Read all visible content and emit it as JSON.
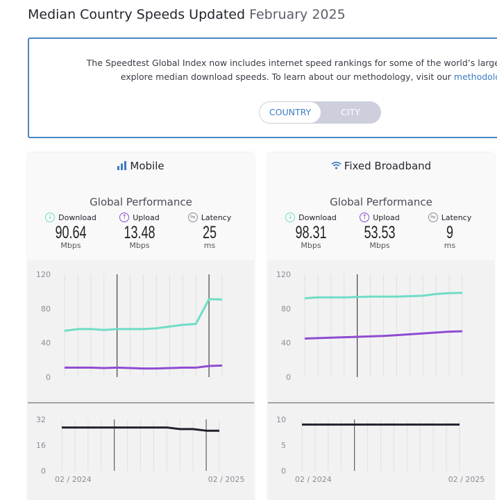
{
  "header": {
    "title": "Median Country Speeds Updated",
    "date": "February 2025"
  },
  "info": {
    "line1": "The Speedtest Global Index now includes internet speed rankings for some of the world’s largest cities. U",
    "line2": "explore median download speeds. To learn about our methodology, visit our ",
    "link": "methodology"
  },
  "toggle": {
    "options": [
      "COUNTRY",
      "CITY"
    ],
    "selected": "COUNTRY"
  },
  "colors": {
    "download": "#6fdcc6",
    "upload": "#8f4bd0",
    "latency": "#20202e",
    "link": "#3d7cc0"
  },
  "cards": [
    {
      "title": "Mobile",
      "icon": "signal-bars-icon",
      "subtitle": "Global Performance",
      "metrics": [
        {
          "label": "Download",
          "value": "90.64",
          "unit": "Mbps"
        },
        {
          "label": "Upload",
          "value": "13.48",
          "unit": "Mbps"
        },
        {
          "label": "Latency",
          "value": "25",
          "unit": "ms"
        }
      ]
    },
    {
      "title": "Fixed Broadband",
      "icon": "wifi-icon",
      "subtitle": "Global Performance",
      "metrics": [
        {
          "label": "Download",
          "value": "98.31",
          "unit": "Mbps"
        },
        {
          "label": "Upload",
          "value": "53.53",
          "unit": "Mbps"
        },
        {
          "label": "Latency",
          "value": "9",
          "unit": "ms"
        }
      ]
    }
  ],
  "chart_data": [
    {
      "type": "line",
      "x_labels": [
        "02 / 2024",
        "02 / 2025"
      ],
      "speed_ticks": [
        "0",
        "40",
        "80",
        "120"
      ],
      "speed_ylim": [
        0,
        120
      ],
      "latency_ticks": [
        "0",
        "16",
        "32"
      ],
      "latency_ylim": [
        0,
        32
      ],
      "markers": [
        4,
        11
      ],
      "series": [
        {
          "key": "download",
          "values": [
            54,
            56,
            56,
            55,
            56,
            56,
            56,
            57,
            59,
            61,
            62,
            91,
            90.64
          ]
        },
        {
          "key": "upload",
          "values": [
            11,
            11,
            11,
            10.5,
            11,
            10.5,
            10,
            10,
            10.5,
            11,
            11,
            13,
            13.48
          ]
        },
        {
          "key": "latency",
          "values": [
            27,
            27,
            27,
            27,
            27,
            27,
            27,
            27,
            27,
            26,
            26,
            25,
            25
          ]
        }
      ]
    },
    {
      "type": "line",
      "x_labels": [
        "02 / 2024",
        "02 / 2025"
      ],
      "speed_ticks": [
        "0",
        "40",
        "80",
        "120"
      ],
      "speed_ylim": [
        0,
        120
      ],
      "latency_ticks": [
        "0",
        "5",
        "10"
      ],
      "latency_ylim": [
        0,
        10
      ],
      "markers": [
        4
      ],
      "series": [
        {
          "key": "download",
          "values": [
            92,
            93,
            93,
            93,
            93.5,
            94,
            94,
            94,
            94.5,
            95,
            97,
            98,
            98.31
          ]
        },
        {
          "key": "upload",
          "values": [
            45,
            45.5,
            46,
            46.5,
            47,
            47.5,
            48,
            49,
            50,
            51,
            52,
            53,
            53.53
          ]
        },
        {
          "key": "latency",
          "values": [
            9,
            9,
            9,
            9,
            9,
            9,
            9,
            9,
            9,
            9,
            9,
            9,
            9
          ]
        }
      ]
    }
  ]
}
